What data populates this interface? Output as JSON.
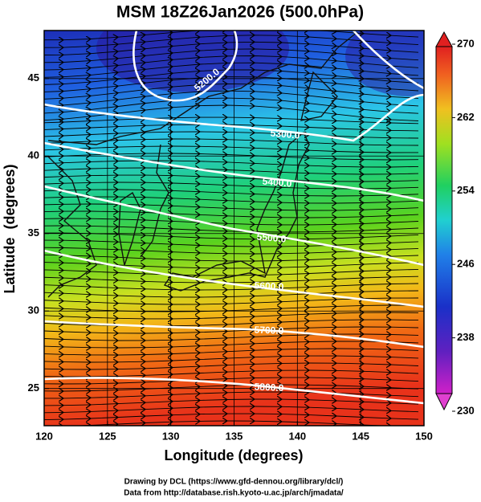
{
  "title": "MSM 18Z26Jan2026 (500.0hPa)",
  "x_axis": {
    "label": "Longitude (degrees)",
    "xlim": [
      120,
      150
    ],
    "ticks": [
      120,
      125,
      130,
      135,
      140,
      145,
      150
    ]
  },
  "y_axis": {
    "label": "Latitude  (degrees)",
    "ylim": [
      22.6,
      48.1
    ],
    "ticks": [
      25,
      30,
      35,
      40,
      45
    ]
  },
  "colorbar": {
    "lim": [
      230,
      270
    ],
    "ticks": [
      230,
      238,
      246,
      254,
      262,
      270
    ]
  },
  "contour_labels": [
    "5200.0",
    "5300.0",
    "5400.0",
    "5500.0",
    "5600.0",
    "5700.0",
    "5800.0"
  ],
  "credits": [
    "Drawing by DCL (https://www.gfd-dennou.org/library/dcl/)",
    "Data from http://database.rish.kyoto-u.ac.jp/arch/jmadata/"
  ]
}
